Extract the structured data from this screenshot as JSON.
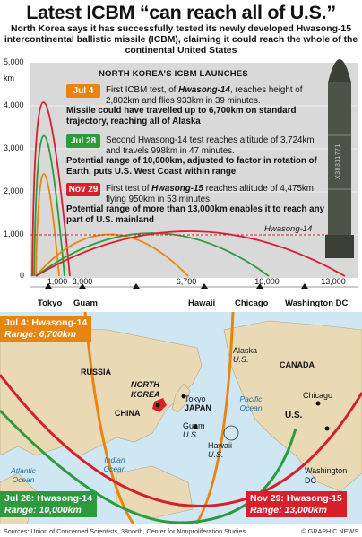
{
  "header": {
    "title": "Latest ICBM “can reach all of U.S.”",
    "subtitle": "North Korea says it has successfully tested its newly developed Hwasong-15 intercontinental ballistic missile (ICBM), claiming it could reach the whole of the continental United States"
  },
  "chart": {
    "y_ticks": [
      "5,000",
      "4,000",
      "3,000",
      "2,000",
      "1,000",
      "0"
    ],
    "y_unit": "km",
    "x_ticks": [
      "1,000",
      "3,000",
      "6,700",
      "10,000",
      "13,000"
    ],
    "panel_title": "NORTH KOREA’S ICBM LAUNCHES",
    "missile_label": "Hwasong-14",
    "missile_serial": "X38311771"
  },
  "launches": [
    {
      "date": "Jul 4",
      "color": "#e8850e",
      "text_pre": "First ICBM test, of ",
      "text_em": "Hwasong-14",
      "text_post": ", reaches height of 2,802km and flies 933km in 39 minutes.",
      "note": "Missile could have travelled up to 6,700km on standard trajectory, reaching all of Alaska"
    },
    {
      "date": "Jul 28",
      "color": "#2e9a3e",
      "text_pre": "Second Hwasong-14 test reaches altitude of 3,724km and travels 998km in 47 minutes.",
      "text_em": "",
      "text_post": "",
      "note": "Potential range of 10,000km, adjusted to factor in rotation of Earth, puts U.S. West Coast within range"
    },
    {
      "date": "Nov 29",
      "color": "#d8202c",
      "text_pre": "First test of ",
      "text_em": "Hwasong-15",
      "text_post": " reaches altitude of 4,475km, flying 950km in 53 minutes.",
      "note": "Potential range of more than 13,000km enables it to reach any part of U.S. mainland"
    }
  ],
  "cities": [
    "Tokyo",
    "Guam",
    "Hawaii",
    "Chicago",
    "Washington DC"
  ],
  "map": {
    "labels": {
      "russia": "RUSSIA",
      "china": "CHINA",
      "north_korea": "NORTH KOREA",
      "tokyo": "Tokyo",
      "japan": "JAPAN",
      "guam": "Guam",
      "guam_us": "U.S.",
      "alaska": "Alaska",
      "alaska_us": "U.S.",
      "canada": "CANADA",
      "chicago": "Chicago",
      "us": "U.S.",
      "hawaii": "Hawaii",
      "hawaii_us": "U.S.",
      "washington": "Washington DC",
      "atlantic": "Atlantic Ocean",
      "indian": "Indian Ocean",
      "pacific": "Pacific Ocean"
    },
    "ranges": [
      {
        "title": "Jul 4: Hwasong-14",
        "range": "Range: 6,700km",
        "color": "#e8850e"
      },
      {
        "title": "Jul 28: Hwasong-14",
        "range": "Range: 10,000km",
        "color": "#2e9a3e"
      },
      {
        "title": "Nov 29: Hwasong-15",
        "range": "Range: 13,000km",
        "color": "#d8202c"
      }
    ]
  },
  "footer": {
    "sources": "Sources: Union of Concerned Scientists, 38north, Center for Nonproliferation Studies",
    "credit": "© GRAPHIC NEWS"
  }
}
